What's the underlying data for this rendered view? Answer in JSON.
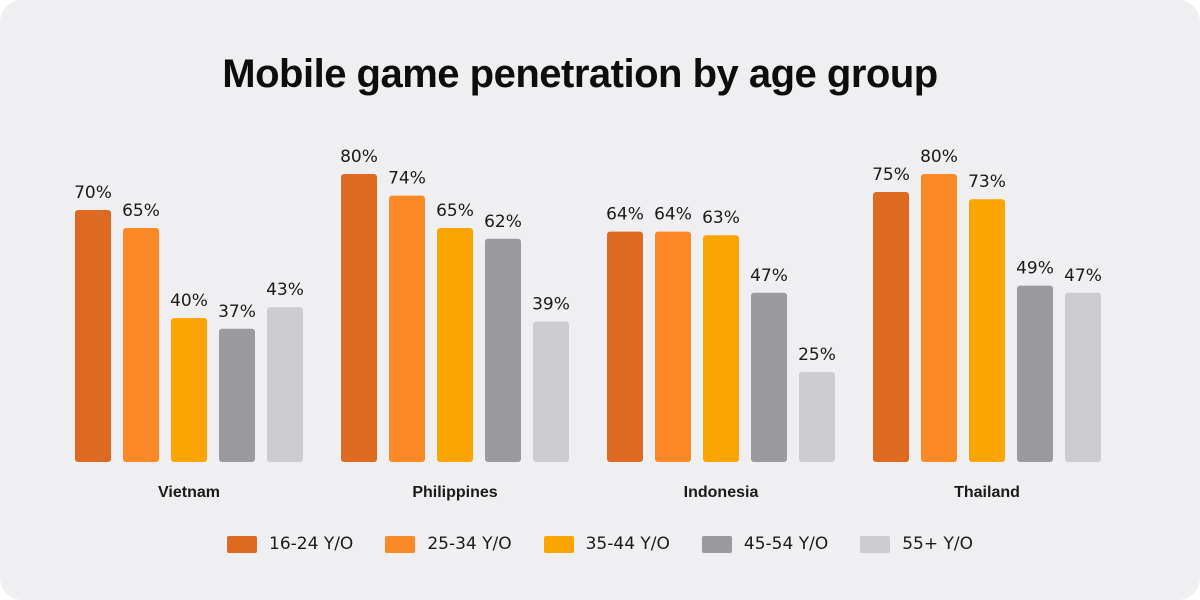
{
  "chart_data": {
    "type": "bar",
    "title": "Mobile game penetration by age group",
    "categories": [
      "Vietnam",
      "Philippines",
      "Indonesia",
      "Thailand"
    ],
    "series": [
      {
        "name": "16-24 Y/O",
        "color": "#dd6a20",
        "values": [
          70,
          80,
          64,
          75
        ]
      },
      {
        "name": "25-34 Y/O",
        "color": "#fb8a26",
        "values": [
          65,
          74,
          64,
          80
        ]
      },
      {
        "name": "35-44 Y/O",
        "color": "#fca404",
        "values": [
          40,
          65,
          63,
          73
        ]
      },
      {
        "name": "45-54 Y/O",
        "color": "#9b9a9d",
        "values": [
          37,
          62,
          47,
          49
        ]
      },
      {
        "name": "55+ Y/O",
        "color": "#cdccd0",
        "values": [
          43,
          39,
          25,
          47
        ]
      }
    ],
    "value_suffix": "%",
    "ylim": [
      0,
      100
    ],
    "grid": false,
    "legend_position": "bottom"
  }
}
